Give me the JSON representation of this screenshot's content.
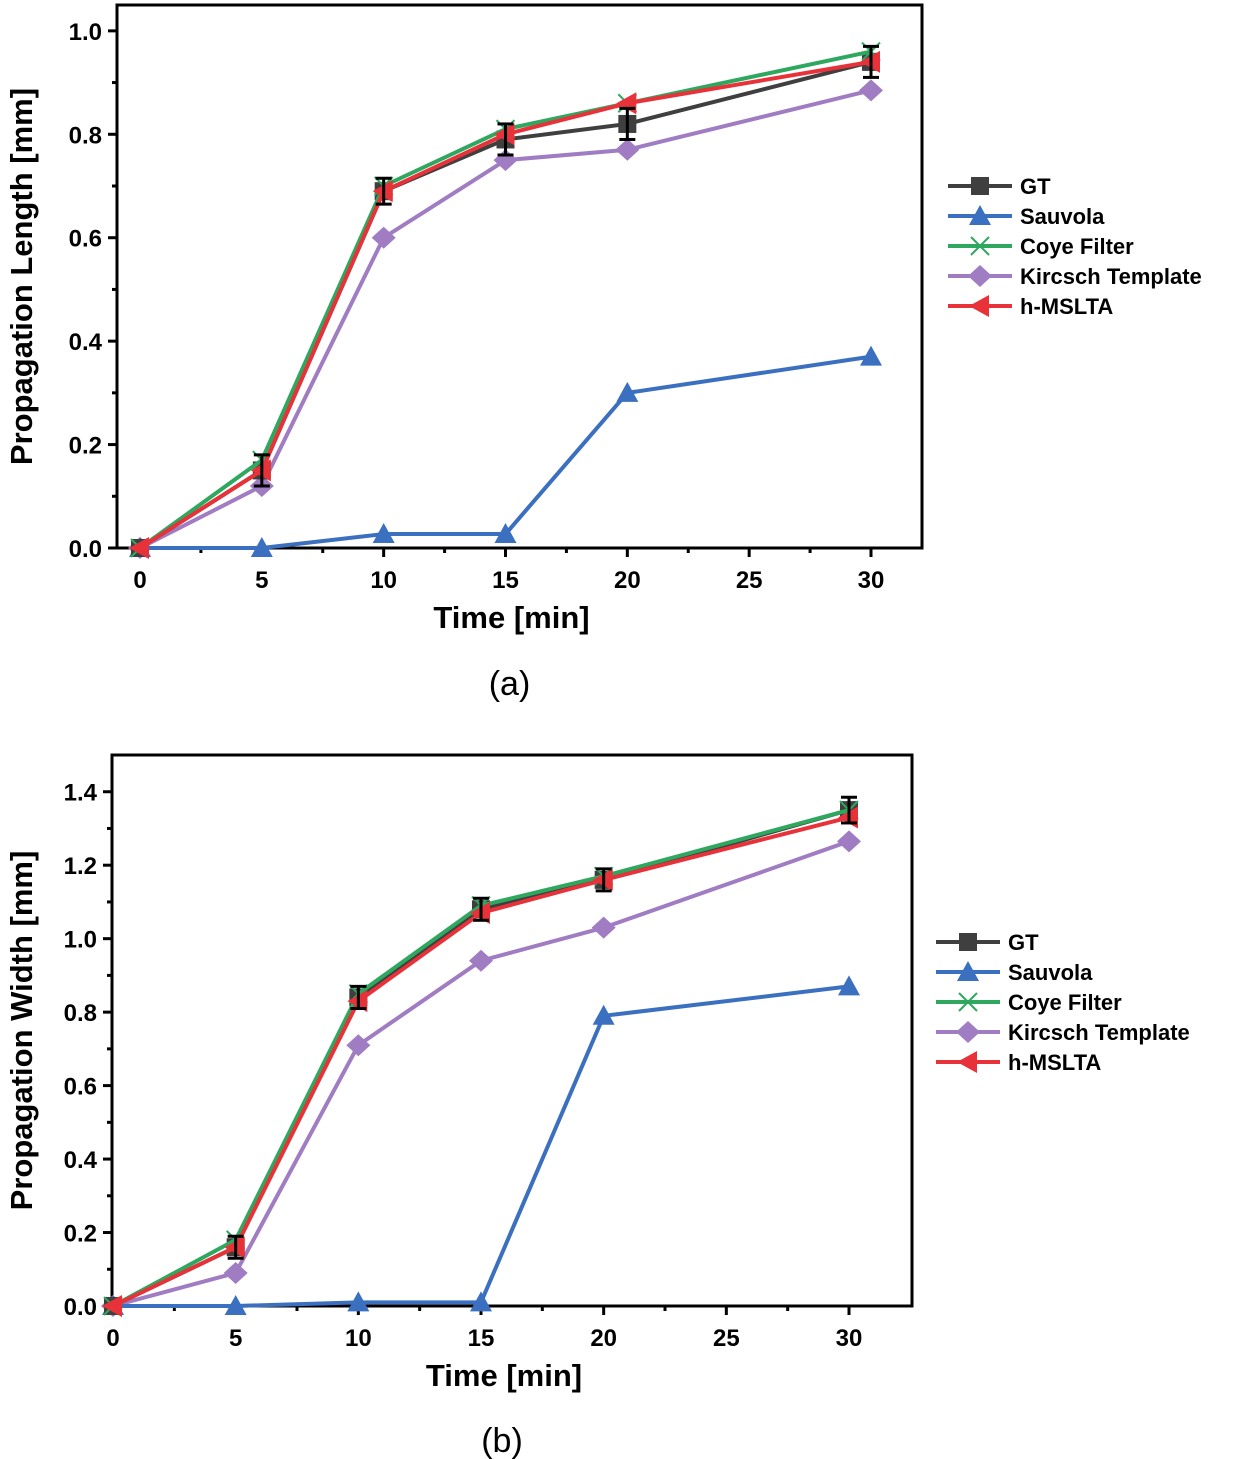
{
  "colors": {
    "GT": "#3f3f3f",
    "Sauvola": "#3b6fc0",
    "Coye Filter": "#2fa85f",
    "Kircsch Template": "#a07cc2",
    "h-MSLTA": "#e8323a"
  },
  "chart_data": [
    {
      "type": "line",
      "caption": "(a)",
      "xlabel": "Time [min]",
      "ylabel": "Propagation Length [mm]",
      "xlim": [
        -1,
        32.5
      ],
      "ylim": [
        0,
        1.05
      ],
      "xticks": [
        0,
        5,
        10,
        15,
        20,
        25,
        30
      ],
      "xtick_labels": [
        "0",
        "5",
        "10",
        "15",
        "20",
        "25",
        "30"
      ],
      "yticks": [
        0,
        0.2,
        0.4,
        0.6,
        0.8,
        1.0
      ],
      "ytick_labels": [
        "0.0",
        "0.2",
        "0.4",
        "0.6",
        "0.8",
        "1.0"
      ],
      "legend_position": "right",
      "x": [
        0,
        5,
        10,
        15,
        20,
        30
      ],
      "series": [
        {
          "name": "GT",
          "marker": "square",
          "values": [
            0,
            0.15,
            0.69,
            0.79,
            0.82,
            0.94
          ],
          "errors": [
            0,
            0.03,
            0.025,
            0.03,
            0.03,
            0.03
          ]
        },
        {
          "name": "Sauvola",
          "marker": "triangle-up",
          "values": [
            0,
            0,
            0.027,
            0.027,
            0.3,
            0.37
          ]
        },
        {
          "name": "Coye Filter",
          "marker": "x",
          "values": [
            0,
            0.17,
            0.7,
            0.81,
            0.86,
            0.96
          ]
        },
        {
          "name": "Kircsch Template",
          "marker": "diamond",
          "values": [
            0,
            0.12,
            0.6,
            0.75,
            0.77,
            0.885
          ]
        },
        {
          "name": "h-MSLTA",
          "marker": "triangle-left",
          "values": [
            0,
            0.15,
            0.69,
            0.8,
            0.86,
            0.94
          ]
        }
      ]
    },
    {
      "type": "line",
      "caption": "(b)",
      "xlabel": "Time [min]",
      "ylabel": "Propagation Width [mm]",
      "xlim": [
        0,
        32.5
      ],
      "ylim": [
        0,
        1.5
      ],
      "xticks": [
        0,
        5,
        10,
        15,
        20,
        25,
        30
      ],
      "xtick_labels": [
        "0",
        "5",
        "10",
        "15",
        "20",
        "25",
        "30"
      ],
      "yticks": [
        0,
        0.2,
        0.4,
        0.6,
        0.8,
        1.0,
        1.2,
        1.4
      ],
      "ytick_labels": [
        "0.0",
        "0.2",
        "0.4",
        "0.6",
        "0.8",
        "1.0",
        "1.2",
        "1.4"
      ],
      "legend_position": "right",
      "x": [
        0,
        5,
        10,
        15,
        20,
        30
      ],
      "series": [
        {
          "name": "GT",
          "marker": "square",
          "values": [
            0,
            0.16,
            0.84,
            1.08,
            1.16,
            1.35
          ],
          "errors": [
            0,
            0.03,
            0.03,
            0.03,
            0.03,
            0.035
          ]
        },
        {
          "name": "Sauvola",
          "marker": "triangle-up",
          "values": [
            0,
            0,
            0.01,
            0.01,
            0.79,
            0.87
          ]
        },
        {
          "name": "Coye Filter",
          "marker": "x",
          "values": [
            0,
            0.18,
            0.85,
            1.09,
            1.17,
            1.35
          ]
        },
        {
          "name": "Kircsch Template",
          "marker": "diamond",
          "values": [
            0,
            0.09,
            0.71,
            0.94,
            1.03,
            1.265
          ]
        },
        {
          "name": "h-MSLTA",
          "marker": "triangle-left",
          "values": [
            0,
            0.16,
            0.83,
            1.07,
            1.16,
            1.33
          ]
        }
      ]
    }
  ]
}
